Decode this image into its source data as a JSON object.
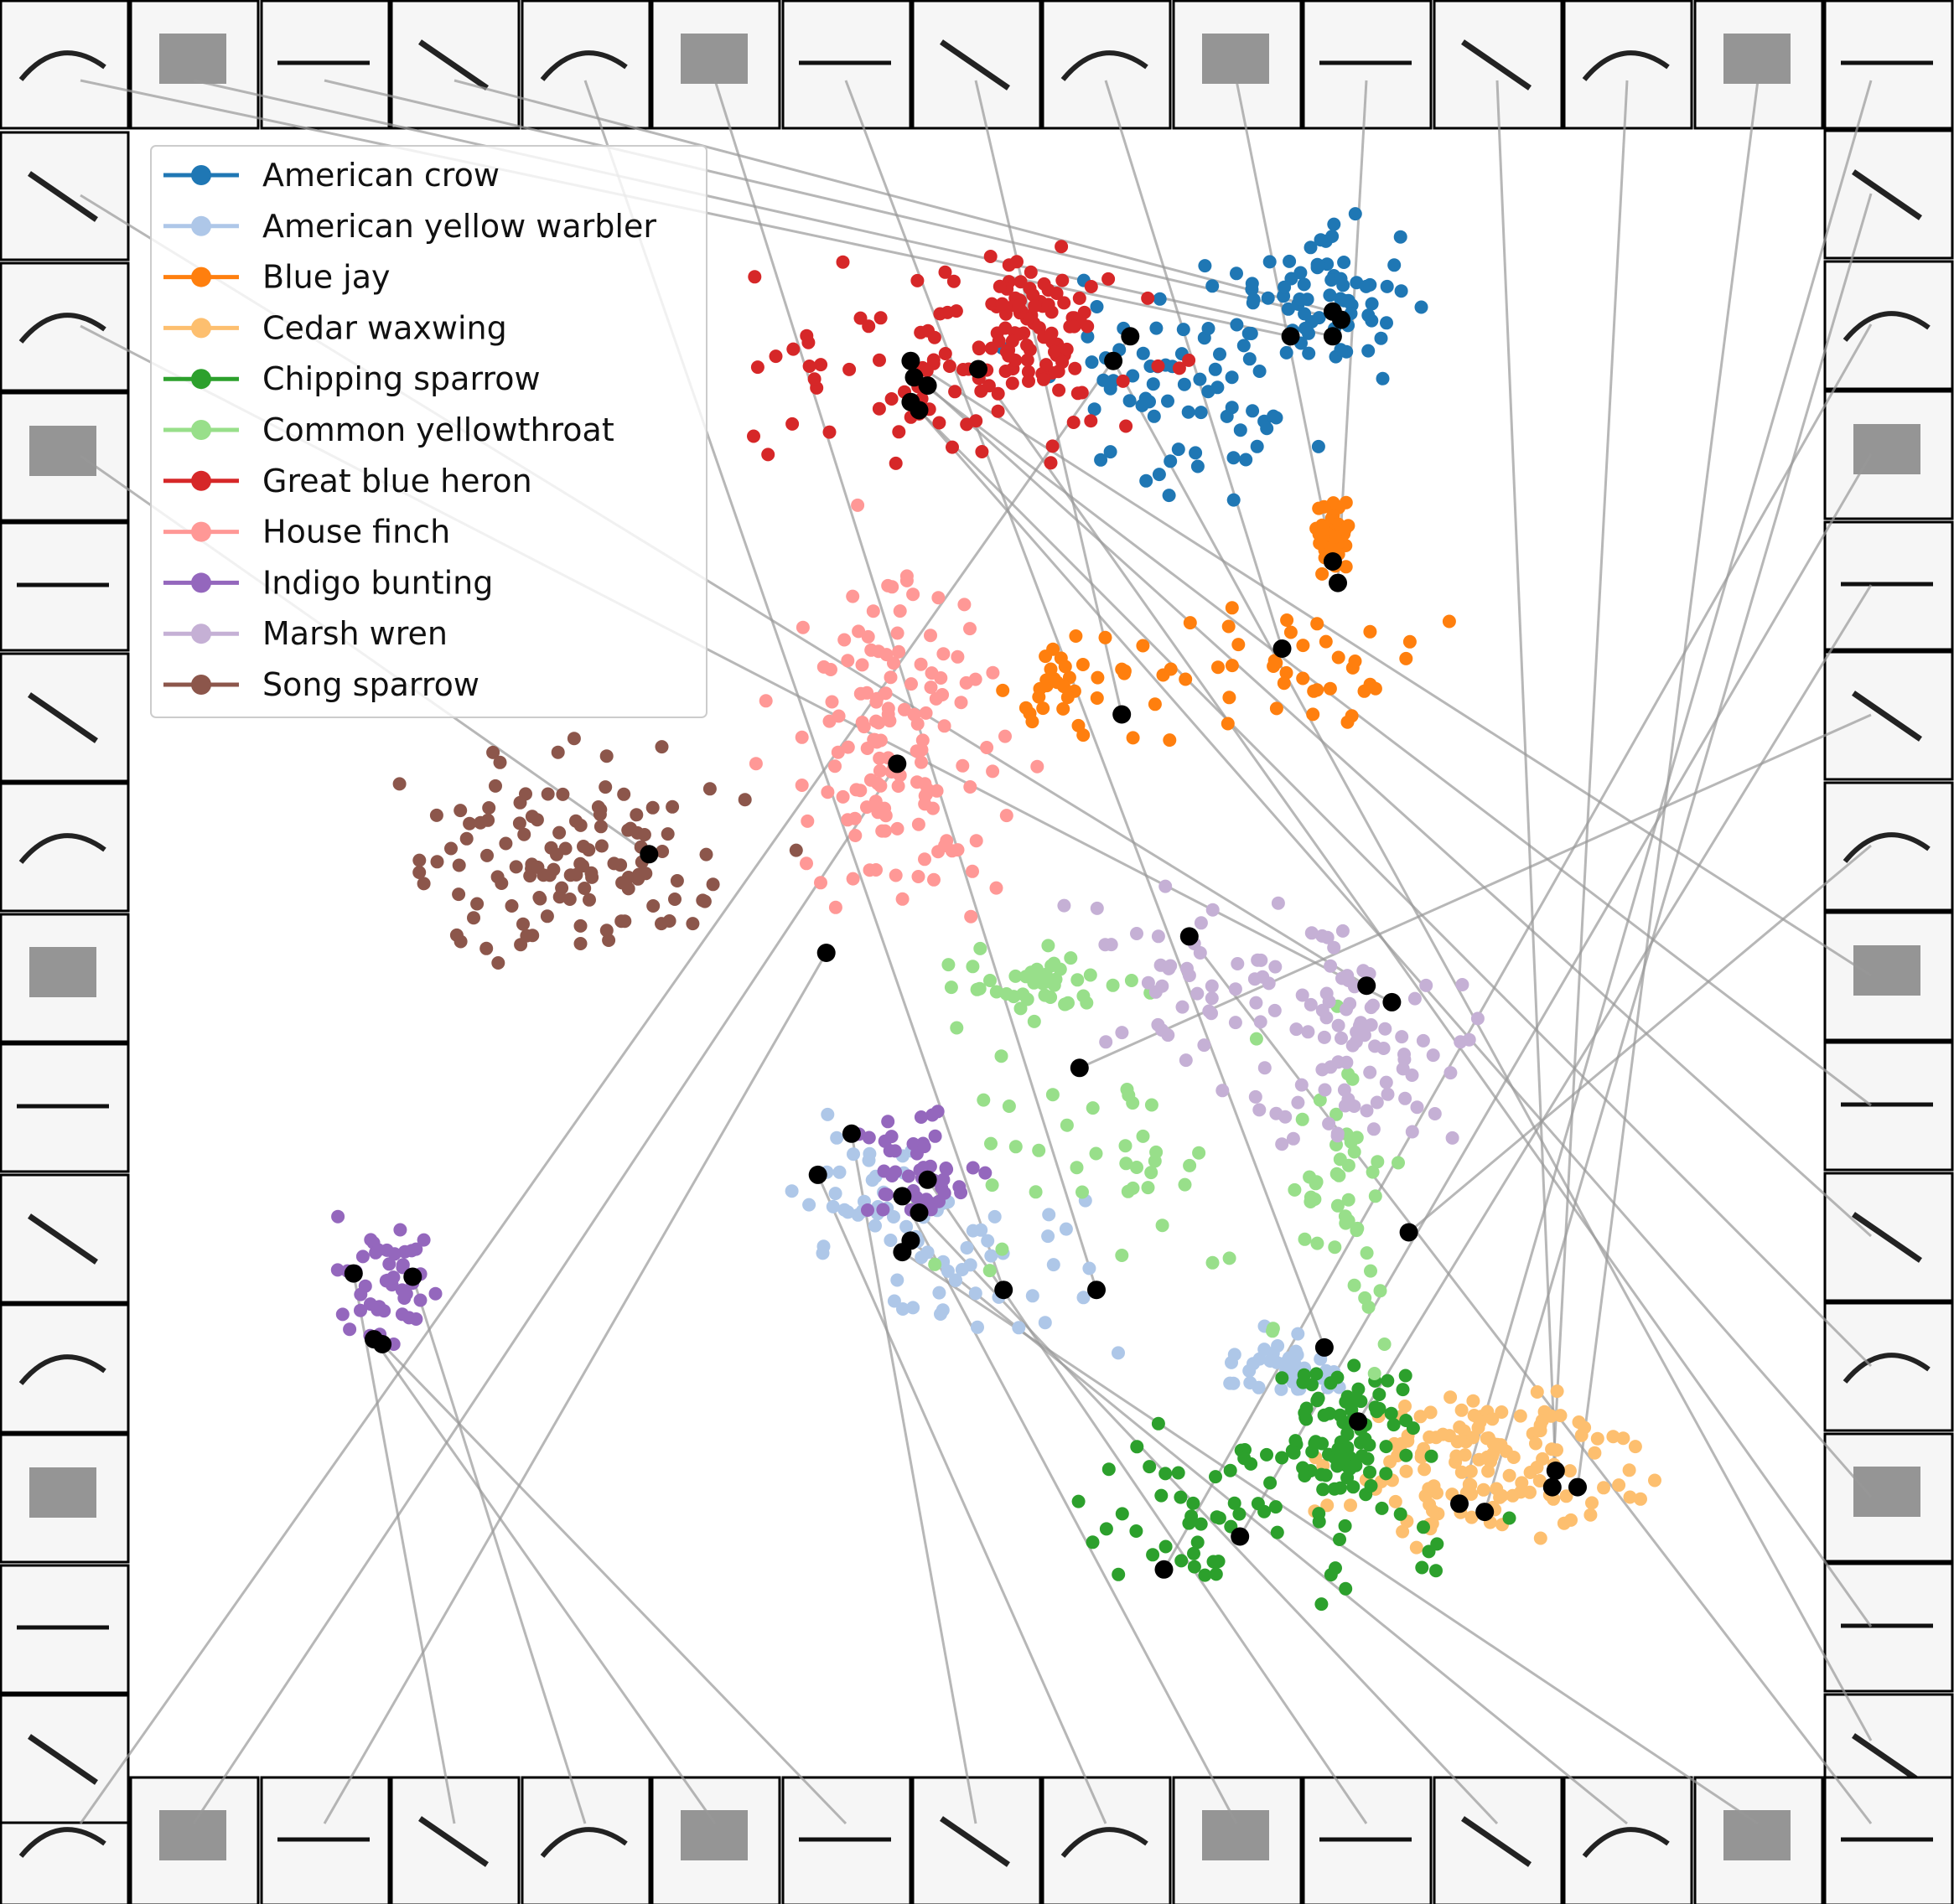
{
  "chart_data": {
    "type": "scatter",
    "title": "",
    "xlabel": "",
    "ylabel": "",
    "axes_visible": false,
    "grid": false,
    "legend_placement": "top-left",
    "border_tiles": "spectrogram thumbnails of selected calls linked to embedding points by gray lines",
    "xlim": [
      0,
      100
    ],
    "ylim": [
      0,
      100
    ],
    "series": [
      {
        "name": "American crow",
        "color": "#1f77b4",
        "n": 140,
        "clusters": [
          [
            62,
            84,
            4,
            3
          ],
          [
            70,
            90,
            3,
            2
          ]
        ],
        "highlighted": [
          [
            68.5,
            87.5
          ],
          [
            71,
            87.5
          ],
          [
            71.5,
            88.5
          ],
          [
            71,
            89
          ]
        ]
      },
      {
        "name": "American yellow warbler",
        "color": "#aec7e8",
        "n": 110,
        "clusters": [
          [
            52,
            30,
            4,
            2
          ],
          [
            44,
            35,
            2,
            2
          ],
          [
            68,
            25,
            2,
            1
          ]
        ],
        "highlighted": [
          [
            51.5,
            29.5
          ],
          [
            57,
            29.5
          ],
          [
            70.5,
            26
          ]
        ]
      },
      {
        "name": "Blue jay",
        "color": "#ff7f0e",
        "n": 110,
        "clusters": [
          [
            56,
            66,
            2.5,
            1.5
          ],
          [
            68,
            67,
            4,
            2
          ],
          [
            71,
            75,
            0.5,
            1.5
          ]
        ],
        "highlighted": [
          [
            58.5,
            64.5
          ],
          [
            68,
            68.5
          ],
          [
            71,
            73.8
          ],
          [
            71.3,
            72.5
          ]
        ]
      },
      {
        "name": "Cedar waxwing",
        "color": "#fdbf6f",
        "n": 140,
        "clusters": [
          [
            80,
            19,
            4,
            2.2
          ]
        ],
        "highlighted": [
          [
            84.2,
            18.5
          ],
          [
            84,
            17.5
          ],
          [
            85.5,
            17.5
          ],
          [
            78.5,
            16.5
          ],
          [
            80,
            16
          ]
        ]
      },
      {
        "name": "Chipping sparrow",
        "color": "#2ca02c",
        "n": 150,
        "clusters": [
          [
            68,
            16,
            6,
            3
          ],
          [
            72,
            21,
            2,
            2
          ]
        ],
        "highlighted": [
          [
            61,
            12.5
          ],
          [
            65.5,
            14.5
          ],
          [
            72.5,
            21.5
          ]
        ]
      },
      {
        "name": "Common yellowthroat",
        "color": "#98df8a",
        "n": 130,
        "clusters": [
          [
            58,
            38,
            6,
            4
          ],
          [
            71,
            35,
            2,
            4
          ],
          [
            54,
            48,
            3,
            1
          ]
        ],
        "highlighted": [
          [
            56,
            43
          ],
          [
            75.5,
            33
          ]
        ]
      },
      {
        "name": "Great blue heron",
        "color": "#d62728",
        "n": 160,
        "clusters": [
          [
            50,
            86,
            6,
            3
          ],
          [
            53,
            88,
            2,
            2
          ]
        ],
        "highlighted": [
          [
            46,
            86
          ],
          [
            46.2,
            85
          ],
          [
            47,
            84.5
          ],
          [
            46,
            83.5
          ],
          [
            46.5,
            83
          ],
          [
            50,
            85.5
          ],
          [
            58,
            86
          ],
          [
            59,
            87.5
          ]
        ]
      },
      {
        "name": "House finch",
        "color": "#ff9896",
        "n": 140,
        "clusters": [
          [
            45,
            63,
            3,
            5
          ]
        ],
        "highlighted": [
          [
            45.2,
            61.5
          ],
          [
            41,
            50
          ]
        ]
      },
      {
        "name": "Indigo bunting",
        "color": "#9467bd",
        "n": 90,
        "clusters": [
          [
            46,
            37,
            2,
            2
          ],
          [
            15,
            30,
            1.5,
            2
          ]
        ],
        "highlighted": [
          [
            13,
            30.5
          ],
          [
            16.5,
            30.3
          ],
          [
            14.2,
            26.5
          ],
          [
            14.7,
            26.2
          ],
          [
            42.5,
            39
          ],
          [
            40.5,
            36.5
          ],
          [
            45.5,
            35.2
          ],
          [
            47,
            36.2
          ],
          [
            46.5,
            34.2
          ],
          [
            46,
            32.5
          ],
          [
            45.5,
            31.8
          ]
        ]
      },
      {
        "name": "Marsh wren",
        "color": "#c5b0d5",
        "n": 130,
        "clusters": [
          [
            65,
            48,
            5,
            3
          ],
          [
            73,
            44,
            3,
            3
          ]
        ],
        "highlighted": [
          [
            62.5,
            51
          ],
          [
            73,
            48
          ],
          [
            74.5,
            47
          ]
        ]
      },
      {
        "name": "Song sparrow",
        "color": "#8c564b",
        "n": 120,
        "clusters": [
          [
            26,
            56,
            5,
            3
          ]
        ],
        "highlighted": [
          [
            30.5,
            56
          ]
        ]
      }
    ]
  }
}
